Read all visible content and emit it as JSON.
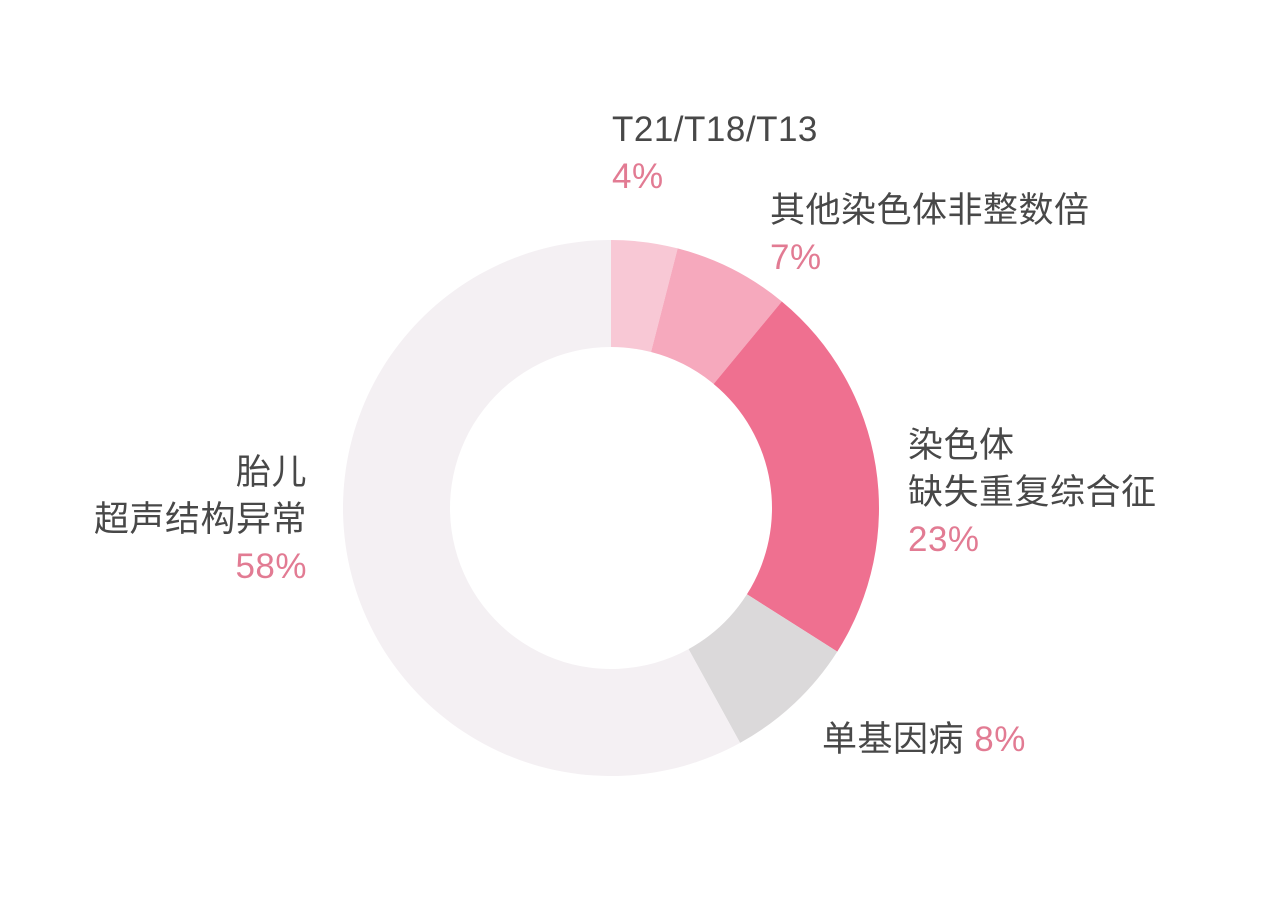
{
  "chart_data": {
    "type": "pie",
    "variant": "donut",
    "title": "",
    "start_angle_deg": 0,
    "direction": "clockwise",
    "legend_position": "outside-callout-labels",
    "segments": [
      {
        "label": "T21/T18/T13",
        "value": 4,
        "pct_text": "4%",
        "color": "#f8c8d5"
      },
      {
        "label": "其他染色体非整数倍",
        "value": 7,
        "pct_text": "7%",
        "color": "#f6a9bd"
      },
      {
        "label": "染色体缺失重复综合征",
        "value": 23,
        "pct_text": "23%",
        "color": "#ef7090"
      },
      {
        "label": "单基因病",
        "value": 8,
        "pct_text": "8%",
        "color": "#dbd9da"
      },
      {
        "label": "胎儿超声结构异常",
        "value": 58,
        "pct_text": "58%",
        "color": "#f4f0f3"
      }
    ]
  },
  "labels": {
    "t21": {
      "line1": "T21/T18/T13",
      "pct": "4%"
    },
    "other_aneuploidy": {
      "line1": "其他染色体非整数倍",
      "pct": "7%"
    },
    "cnv": {
      "line1": "染色体",
      "line2": "缺失重复综合征",
      "pct": "23%"
    },
    "ultrasound": {
      "line1": "胎儿",
      "line2": "超声结构异常",
      "pct": "58%"
    },
    "monogenic": {
      "line1": "单基因病",
      "pct": "8%"
    }
  },
  "colors": {
    "background": "#ffffff",
    "label_text": "#484848",
    "percent_text": "#e27b93",
    "segment_t21": "#f8c8d5",
    "segment_other_aneuploidy": "#f6a9bd",
    "segment_cnv": "#ef7090",
    "segment_monogenic": "#dbd9da",
    "segment_ultrasound": "#f4f0f3"
  }
}
